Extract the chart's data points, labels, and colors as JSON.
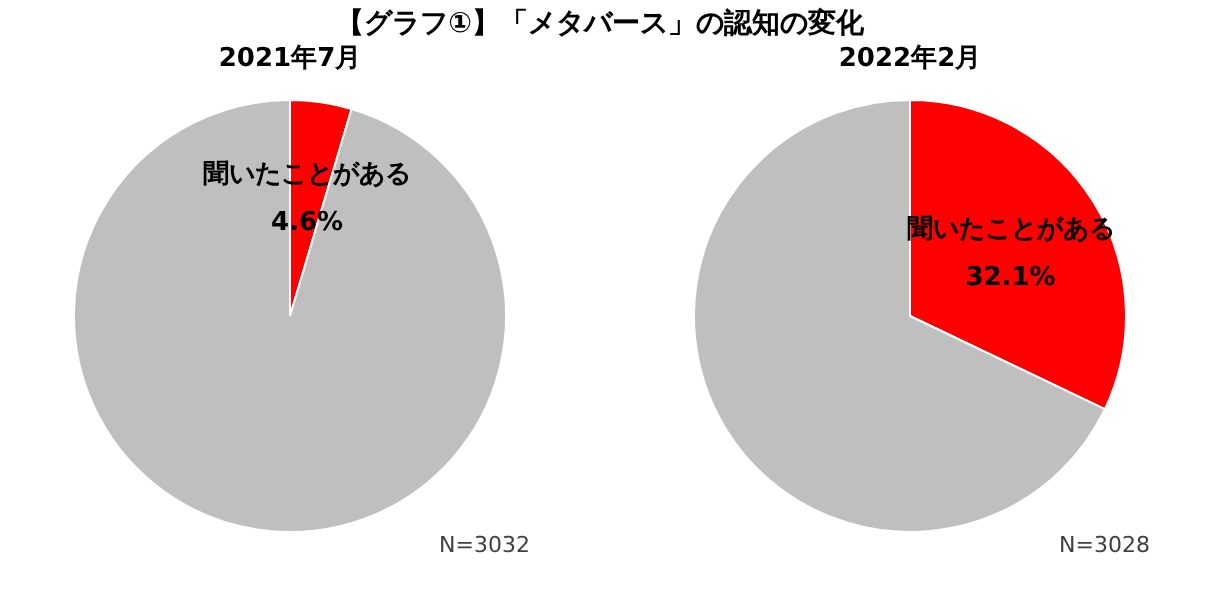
{
  "chart_data": [
    {
      "type": "pie",
      "title": "【グラフ①】「メタバース」の認知の変化",
      "subtitle": "2021年7月",
      "categories": [
        "聞いたことがある",
        null
      ],
      "values": [
        4.6,
        95.4
      ],
      "colors": [
        "#ff0000",
        "#bfbfbf"
      ],
      "value_labels": [
        "4.6%",
        null
      ],
      "annotations": [
        "N=3032"
      ],
      "legend": false
    },
    {
      "type": "pie",
      "subtitle": "2022年2月",
      "categories": [
        "聞いたことがある",
        null
      ],
      "values": [
        32.1,
        67.9
      ],
      "colors": [
        "#ff0000",
        "#bfbfbf"
      ],
      "value_labels": [
        "32.1%",
        null
      ],
      "annotations": [
        "N=3028"
      ],
      "legend": false
    }
  ]
}
